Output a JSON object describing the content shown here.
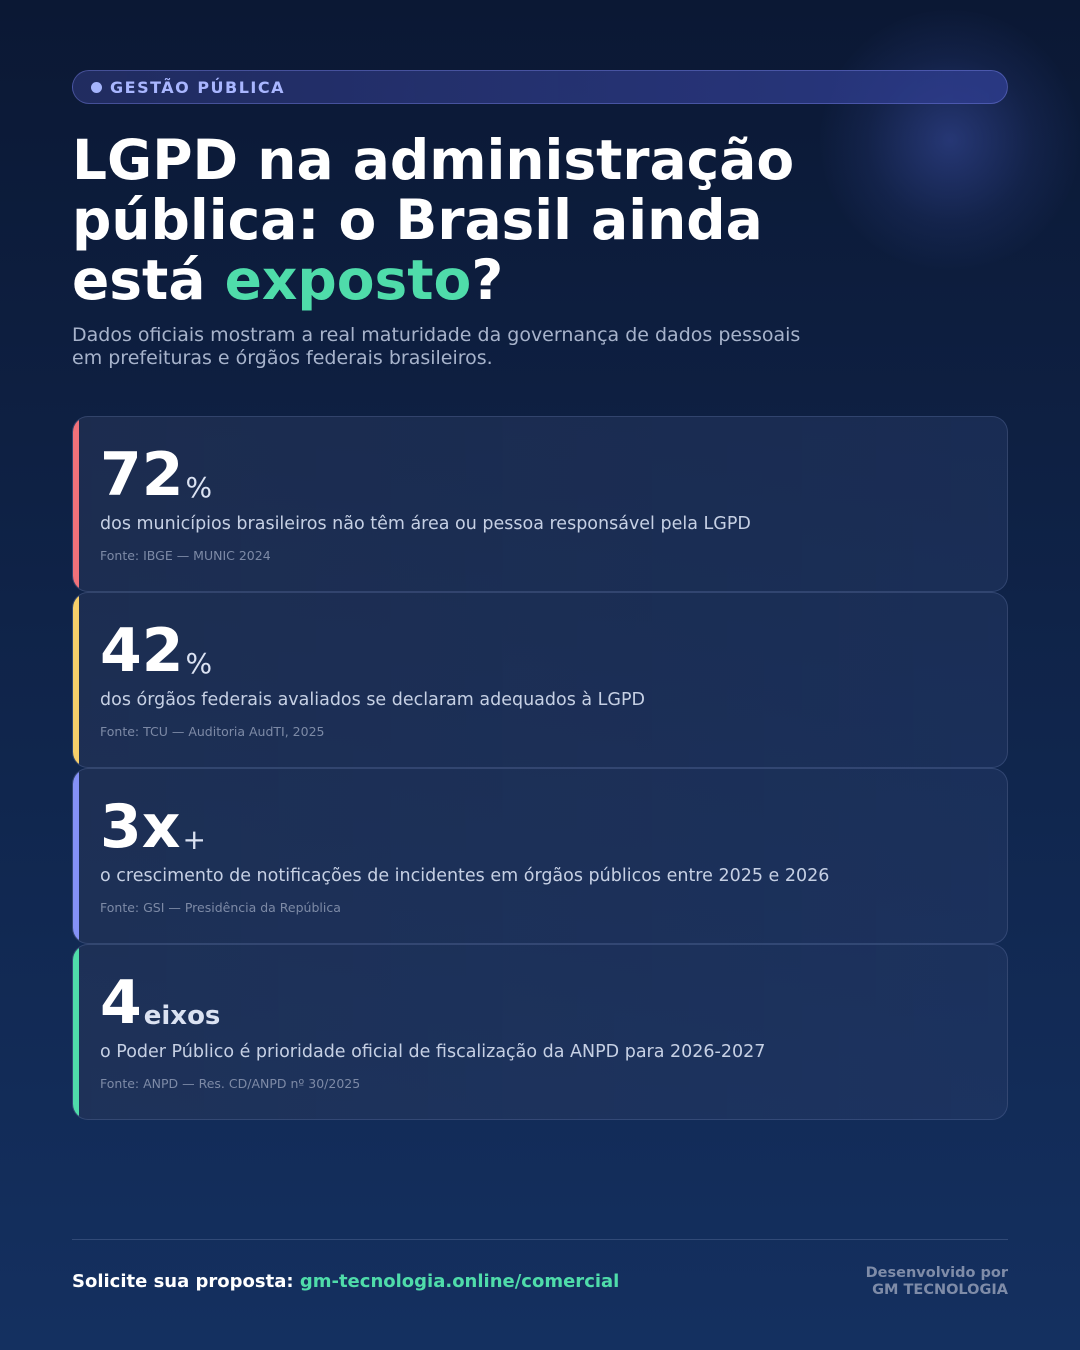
{
  "colors": {
    "accent": "#4fdcaa",
    "pill_text": "#a9b6ff",
    "background_top": "#0b1834",
    "background_bottom": "#143060"
  },
  "tag": {
    "icon": "dot-icon",
    "label": "GESTÃO PÚBLICA"
  },
  "header": {
    "title_line1": "LGPD na administração",
    "title_line2": "pública: o Brasil ainda",
    "title_line3_pre": "está ",
    "title_highlight": "exposto",
    "title_line3_post": "?",
    "subtitle": "Dados oficiais mostram a real maturidade da governança de dados pessoais em prefeituras e órgãos federais brasileiros."
  },
  "stats": [
    {
      "value": "72",
      "unit": "%",
      "description": "dos municípios brasileiros não têm área ou pessoa responsável pela LGPD",
      "source": "Fonte: IBGE — MUNIC 2024",
      "color": "#f0717a"
    },
    {
      "value": "42",
      "unit": "%",
      "description": "dos órgãos federais avaliados se declaram adequados à LGPD",
      "source": "Fonte: TCU — Auditoria AudTI, 2025",
      "color": "#f6cf6a"
    },
    {
      "value": "3x",
      "unit": "+",
      "description": "o crescimento de notificações de incidentes em órgãos públicos entre 2025 e 2026",
      "source": "Fonte: GSI — Presidência da República",
      "color": "#8491f7"
    },
    {
      "value": "4",
      "unit": "eixos",
      "description": "o Poder Público é prioridade oficial de fiscalização da ANPD para 2026-2027",
      "source": "Fonte: ANPD — Res. CD/ANPD nº 30/2025",
      "color": "#4fdcaa"
    }
  ],
  "footer": {
    "cta_label": "Solicite sua proposta: ",
    "cta_link": "gm-tecnologia.online/comercial",
    "credit_line1": "Desenvolvido por",
    "credit_line2": "GM TECNOLOGIA"
  }
}
